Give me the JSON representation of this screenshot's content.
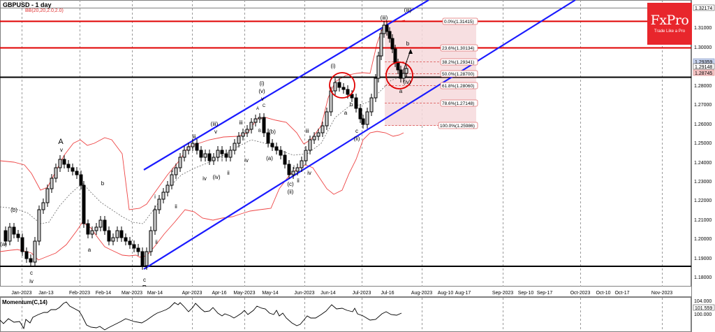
{
  "header": {
    "title": "GBPUSD - 1 day",
    "indicator_label": "BB(20,20,2.0,2.0)"
  },
  "logo": {
    "brand": "FxPro",
    "tagline": "Trade Like a Pro"
  },
  "price_axis": {
    "ticks": [
      "1.32000",
      "1.31000",
      "1.30000",
      "1.29000",
      "1.28000",
      "1.27000",
      "1.26000",
      "1.25000",
      "1.24000",
      "1.23000",
      "1.22000",
      "1.21000",
      "1.20000",
      "1.19000",
      "1.18000"
    ],
    "markers": [
      {
        "label": "1.32174",
        "style": "white"
      },
      {
        "label": "1.29359",
        "style": "blue"
      },
      {
        "label": "1.29148",
        "style": "white"
      },
      {
        "label": "1.28745",
        "style": "pink"
      }
    ]
  },
  "time_axis": {
    "labels": [
      "Jan-2023",
      "Jan-13",
      "Feb-2023",
      "Feb-14",
      "Mar-2023",
      "Mar-14",
      "Apr-2023",
      "Apr-16",
      "May-2023",
      "May-14",
      "Jun-2023",
      "Jun-14",
      "Jul-2023",
      "Jul-16",
      "Aug-2023",
      "Aug-10",
      "Aug-17",
      "Sep-2023",
      "Sep-10",
      "Sep-17",
      "Oct-2023",
      "Oct-10",
      "Oct-17",
      "Nov-2023"
    ]
  },
  "momentum": {
    "label": "Momentum(C,14)",
    "ticks": [
      "104.000",
      "100.000"
    ],
    "current": "101.559"
  },
  "fibonacci": [
    {
      "label": "0.0%(1.31415)"
    },
    {
      "label": "23.6%(1.30134)"
    },
    {
      "label": "38.2%(1.29341)"
    },
    {
      "label": "50.0%(1.28700)"
    },
    {
      "label": "61.8%(1.28060)"
    },
    {
      "label": "78.6%(1.27148)"
    },
    {
      "label": "100.0%(1.25986)"
    }
  ],
  "wave_labels": {
    "A": "A",
    "B": "B",
    "v_A": "v",
    "iv_c": "iv",
    "c_low": "c",
    "b_left": "b",
    "a_left": "a",
    "a_paren": "(a)",
    "b_paren": "(b)",
    "c_B": "c",
    "i_1": "i",
    "ii_1": "ii",
    "i_small": "i",
    "ii_small": "ii",
    "iii_sm": "iii",
    "iii_circ": "(iii)",
    "iv_1": "iv",
    "iv_paren": "(iv)",
    "v_1": "v",
    "i_2": "i",
    "ii_2": "ii",
    "iii_2": "iii",
    "iv_2": "iv",
    "v_top": "v",
    "v_paren": "(v)",
    "i_circ": "(i)",
    "A_small": "A",
    "B_small": "B",
    "C_small": "C",
    "b_mid": "(b)",
    "a_mid": "(a)",
    "c_mid": "(c)",
    "ii_circ": "(ii)",
    "i_3": "i",
    "ii_3": "ii",
    "iii_3": "iii",
    "iv_3": "iv",
    "i_circ2": "(i)",
    "a_2": "a",
    "b_2": "b",
    "c_2": "c",
    "ii_circ2": "(ii)",
    "iii_circ2": "(iii)",
    "iii_proj": "(iii)",
    "iv_circ": "(iv)",
    "a_3": "a",
    "b_3": "b"
  },
  "chart_data": {
    "type": "candlestick",
    "title": "GBPUSD - 1 day",
    "instrument": "GBPUSD",
    "timeframe": "1 day",
    "indicators": [
      "BB(20,20,2.0,2.0)",
      "Momentum(C,14)"
    ],
    "ylim": [
      1.178,
      1.3217
    ],
    "x_range": [
      "Dec-2022",
      "Nov-2023"
    ],
    "horizontal_levels": [
      {
        "price": 1.31415,
        "color": "#e00000",
        "name": "resistance 0% fib"
      },
      {
        "price": 1.30134,
        "color": "#e00000",
        "name": "resistance 23.6% fib"
      },
      {
        "price": 1.28745,
        "color": "#000000",
        "name": "support"
      },
      {
        "price": 1.185,
        "color": "#000000",
        "name": "support low"
      }
    ],
    "channel": {
      "color": "#1a1aff",
      "upper": "from Mar-2023 ~1.236 rising to Jul-2023 ~1.3217",
      "lower": "from Mar-2023 ~1.185 rising through ~1.287 in Aug-2023"
    },
    "fibonacci_retracement": {
      "levels": [
        {
          "pct": "0.0%",
          "price": 1.31415
        },
        {
          "pct": "23.6%",
          "price": 1.30134
        },
        {
          "pct": "38.2%",
          "price": 1.29341
        },
        {
          "pct": "50.0%",
          "price": 1.287
        },
        {
          "pct": "61.8%",
          "price": 1.2806
        },
        {
          "pct": "78.6%",
          "price": 1.27148
        },
        {
          "pct": "100.0%",
          "price": 1.25986
        }
      ]
    },
    "last_price": 1.28745,
    "momentum": {
      "current": 101.559,
      "ticks": [
        104.0,
        100.0
      ]
    }
  }
}
